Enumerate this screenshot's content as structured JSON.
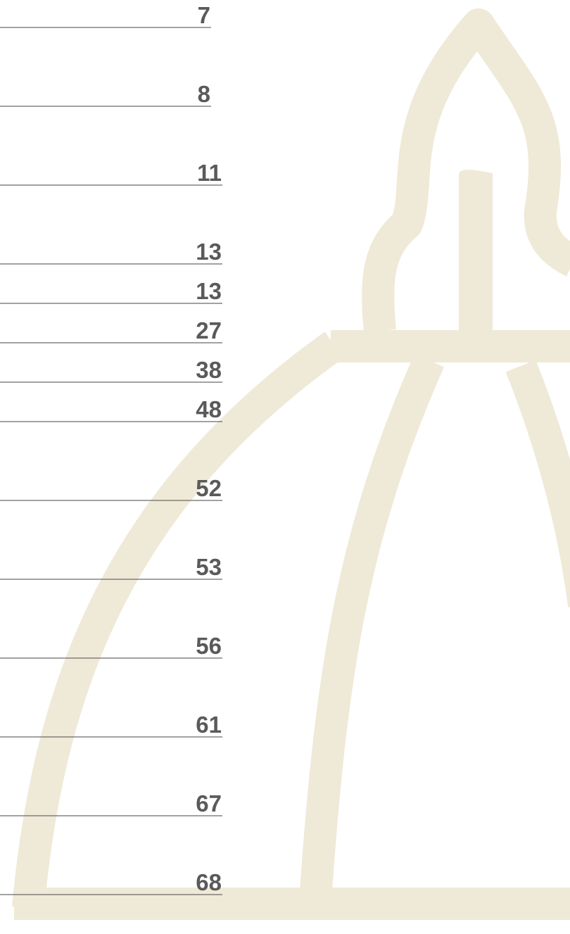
{
  "toc": {
    "page_numbers": [
      7,
      8,
      11,
      13,
      13,
      27,
      38,
      48,
      52,
      53,
      56,
      61,
      67,
      68
    ]
  }
}
